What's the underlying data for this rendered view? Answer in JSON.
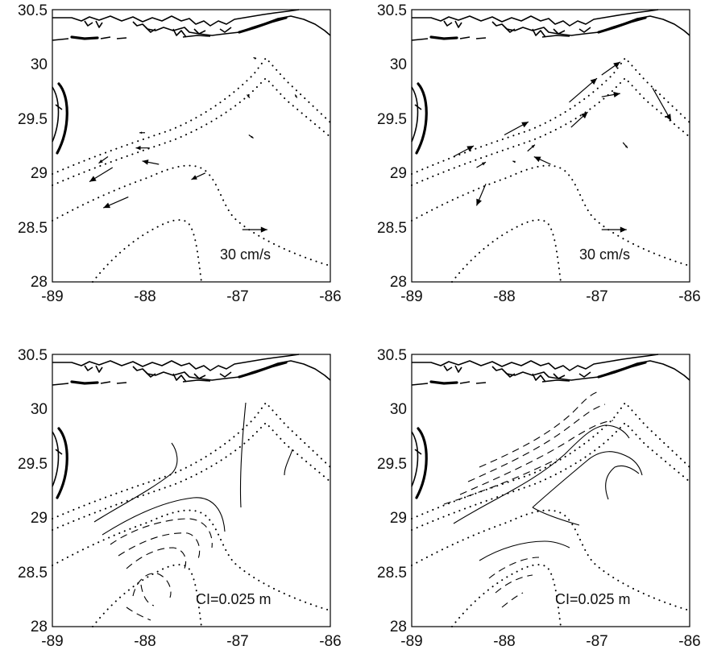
{
  "panels": [
    {
      "id": "velocity-left",
      "type": "vectors",
      "x_ticks": [
        "-89",
        "-88",
        "-87",
        "-86"
      ],
      "y_ticks": [
        "28",
        "28.5",
        "29",
        "29.5",
        "30",
        "30.5"
      ],
      "xlim": [
        -89,
        -86
      ],
      "ylim": [
        28,
        30.5
      ],
      "scale_label": "30 cm/s",
      "scale_vector": {
        "lon": -86.95,
        "lat": 28.48,
        "dx_deg": 0.27,
        "dy_deg": 0
      },
      "vectors": [
        {
          "lon": -88.4,
          "lat": 29.15,
          "dx_deg": -0.1,
          "dy_deg": -0.06
        },
        {
          "lon": -88.35,
          "lat": 29.05,
          "dx_deg": -0.25,
          "dy_deg": -0.13
        },
        {
          "lon": -88.18,
          "lat": 28.78,
          "dx_deg": -0.27,
          "dy_deg": -0.1
        },
        {
          "lon": -87.95,
          "lat": 29.23,
          "dx_deg": -0.15,
          "dy_deg": 0.0
        },
        {
          "lon": -87.85,
          "lat": 29.08,
          "dx_deg": -0.18,
          "dy_deg": 0.03
        },
        {
          "lon": -87.35,
          "lat": 29.0,
          "dx_deg": -0.15,
          "dy_deg": -0.06
        },
        {
          "lon": -88.0,
          "lat": 29.37,
          "dx_deg": -0.06,
          "dy_deg": 0.0
        },
        {
          "lon": -86.88,
          "lat": 29.35,
          "dx_deg": 0.05,
          "dy_deg": -0.03
        },
        {
          "lon": -86.9,
          "lat": 29.72,
          "dx_deg": 0.03,
          "dy_deg": -0.03
        },
        {
          "lon": -86.8,
          "lat": 30.05,
          "dx_deg": -0.03,
          "dy_deg": 0.01
        },
        {
          "lon": -86.38,
          "lat": 29.72,
          "dx_deg": 0.02,
          "dy_deg": -0.03
        }
      ]
    },
    {
      "id": "velocity-right",
      "type": "vectors",
      "x_ticks": [
        "-89",
        "-88",
        "-87",
        "-86"
      ],
      "y_ticks": [
        "28",
        "28.5",
        "29",
        "29.5",
        "30",
        "30.5"
      ],
      "xlim": [
        -89,
        -86
      ],
      "ylim": [
        28,
        30.5
      ],
      "scale_label": "30 cm/s",
      "scale_vector": {
        "lon": -86.95,
        "lat": 28.48,
        "dx_deg": 0.27,
        "dy_deg": 0
      },
      "vectors": [
        {
          "lon": -88.55,
          "lat": 29.15,
          "dx_deg": 0.22,
          "dy_deg": 0.1
        },
        {
          "lon": -88.3,
          "lat": 29.05,
          "dx_deg": 0.1,
          "dy_deg": 0.05
        },
        {
          "lon": -88.0,
          "lat": 29.35,
          "dx_deg": 0.26,
          "dy_deg": 0.12
        },
        {
          "lon": -87.75,
          "lat": 29.2,
          "dx_deg": 0.08,
          "dy_deg": 0.06
        },
        {
          "lon": -87.5,
          "lat": 29.08,
          "dx_deg": -0.18,
          "dy_deg": 0.07
        },
        {
          "lon": -88.2,
          "lat": 28.9,
          "dx_deg": -0.1,
          "dy_deg": -0.2
        },
        {
          "lon": -87.28,
          "lat": 29.42,
          "dx_deg": 0.18,
          "dy_deg": 0.14
        },
        {
          "lon": -87.3,
          "lat": 29.65,
          "dx_deg": 0.3,
          "dy_deg": 0.22
        },
        {
          "lon": -86.95,
          "lat": 29.7,
          "dx_deg": 0.2,
          "dy_deg": 0.03
        },
        {
          "lon": -86.95,
          "lat": 29.9,
          "dx_deg": 0.2,
          "dy_deg": 0.12
        },
        {
          "lon": -86.4,
          "lat": 29.78,
          "dx_deg": 0.2,
          "dy_deg": -0.3
        },
        {
          "lon": -86.72,
          "lat": 29.28,
          "dx_deg": 0.05,
          "dy_deg": -0.05
        },
        {
          "lon": -87.88,
          "lat": 29.1,
          "dx_deg": -0.03,
          "dy_deg": 0.01
        }
      ]
    },
    {
      "id": "contour-left",
      "type": "contours",
      "x_ticks": [
        "-89",
        "-88",
        "-87",
        "-86"
      ],
      "y_ticks": [
        "28",
        "28.5",
        "29",
        "29.5",
        "30",
        "30.5"
      ],
      "xlim": [
        -89,
        -86
      ],
      "ylim": [
        28,
        30.5
      ],
      "ci_label": "CI=0.025 m"
    },
    {
      "id": "contour-right",
      "type": "contours",
      "x_ticks": [
        "-89",
        "-88",
        "-87",
        "-86"
      ],
      "y_ticks": [
        "28",
        "28.5",
        "29",
        "29.5",
        "30",
        "30.5"
      ],
      "xlim": [
        -89,
        -86
      ],
      "ylim": [
        28,
        30.5
      ],
      "ci_label": "CI=0.025 m"
    }
  ]
}
